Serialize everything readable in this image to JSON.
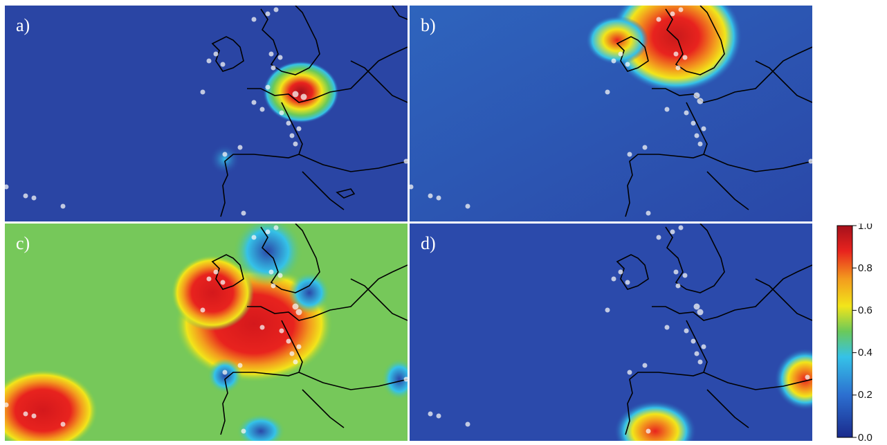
{
  "panels": [
    {
      "id": "a",
      "label": "a)"
    },
    {
      "id": "b",
      "label": "b)"
    },
    {
      "id": "c",
      "label": "c)"
    },
    {
      "id": "d",
      "label": "d)"
    }
  ],
  "colorbar": {
    "ticks": [
      "1.0",
      "0.8",
      "0.6",
      "0.4",
      "0.2",
      "0.0"
    ],
    "colors": {
      "low": "#1a2a8c",
      "mid_low": "#2c6fd0",
      "cyan": "#35c2e8",
      "green": "#6ac95a",
      "yellow": "#f2e51a",
      "orange": "#f39a1e",
      "red": "#e8231e",
      "high": "#a5101b"
    }
  },
  "map_colors": {
    "coastline": "#000000",
    "site_marker": "#f5f5f5"
  }
}
